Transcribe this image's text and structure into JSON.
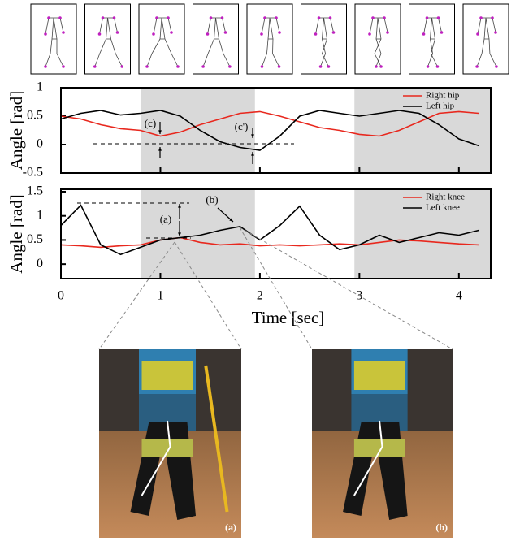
{
  "chart_data": [
    {
      "type": "line",
      "ylabel": "Angle [rad]",
      "x": [
        0,
        0.2,
        0.4,
        0.6,
        0.8,
        1.0,
        1.2,
        1.4,
        1.6,
        1.8,
        2.0,
        2.2,
        2.4,
        2.6,
        2.8,
        3.0,
        3.2,
        3.4,
        3.6,
        3.8,
        4.0,
        4.2
      ],
      "series": [
        {
          "name": "Right hip",
          "color": "#e8281e",
          "values": [
            0.5,
            0.45,
            0.35,
            0.28,
            0.25,
            0.15,
            0.22,
            0.35,
            0.45,
            0.55,
            0.58,
            0.5,
            0.4,
            0.3,
            0.25,
            0.18,
            0.15,
            0.25,
            0.4,
            0.55,
            0.58,
            0.55
          ]
        },
        {
          "name": "Left hip",
          "color": "#000000",
          "values": [
            0.45,
            0.55,
            0.6,
            0.52,
            0.55,
            0.6,
            0.5,
            0.25,
            0.05,
            -0.05,
            -0.1,
            0.15,
            0.5,
            0.6,
            0.55,
            0.5,
            0.55,
            0.6,
            0.55,
            0.35,
            0.1,
            -0.02
          ]
        }
      ],
      "xlim": [
        0,
        4.32
      ],
      "xticks": [
        0,
        1,
        2,
        3,
        4
      ],
      "ylim": [
        -0.5,
        1
      ],
      "yticks": [
        1,
        0.5,
        0,
        -0.5
      ],
      "shaded_spans": [
        [
          0.8,
          1.95
        ],
        [
          2.95,
          4.32
        ]
      ],
      "annotations": [
        "(c)",
        "(c')"
      ]
    },
    {
      "type": "line",
      "ylabel": "Angle [rad]",
      "xlabel": "Time [sec]",
      "x": [
        0,
        0.2,
        0.4,
        0.6,
        0.8,
        1.0,
        1.2,
        1.4,
        1.6,
        1.8,
        2.0,
        2.2,
        2.4,
        2.6,
        2.8,
        3.0,
        3.2,
        3.4,
        3.6,
        3.8,
        4.0,
        4.2
      ],
      "series": [
        {
          "name": "Right knee",
          "color": "#e8281e",
          "values": [
            0.4,
            0.38,
            0.35,
            0.38,
            0.4,
            0.5,
            0.55,
            0.45,
            0.4,
            0.42,
            0.38,
            0.4,
            0.38,
            0.4,
            0.42,
            0.4,
            0.45,
            0.5,
            0.48,
            0.45,
            0.42,
            0.4
          ]
        },
        {
          "name": "Left knee",
          "color": "#000000",
          "values": [
            0.8,
            1.22,
            0.4,
            0.2,
            0.35,
            0.5,
            0.55,
            0.6,
            0.7,
            0.78,
            0.5,
            0.8,
            1.2,
            0.6,
            0.3,
            0.4,
            0.6,
            0.45,
            0.55,
            0.65,
            0.6,
            0.7
          ]
        }
      ],
      "xlim": [
        0,
        4.32
      ],
      "xticks": [
        0,
        1,
        2,
        3,
        4
      ],
      "ylim": [
        -0.3,
        1.55
      ],
      "yticks": [
        1.5,
        1,
        0.5,
        0
      ],
      "shaded_spans": [
        [
          0.8,
          1.95
        ],
        [
          2.95,
          4.32
        ]
      ],
      "annotations": [
        "(a)",
        "(b)"
      ]
    }
  ],
  "photos": [
    {
      "label": "(a)"
    },
    {
      "label": "(b)"
    }
  ]
}
